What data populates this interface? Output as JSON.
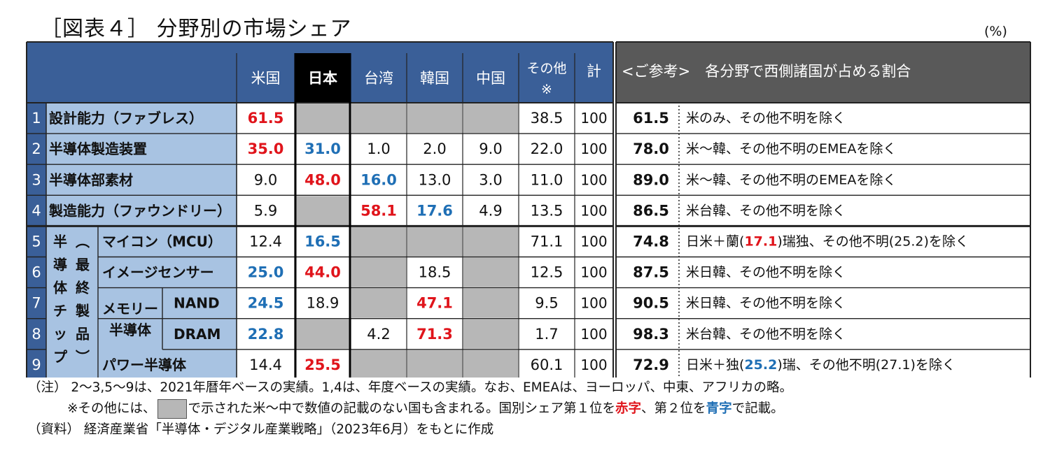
{
  "title": "［図表４］ 分野別の市場シェア",
  "unit": "(%)",
  "colors": {
    "red": "#e0141b",
    "blue": "#1f6fb5",
    "header_bg": "#3a5f98",
    "row_label_bg": "#a8c3e2",
    "na_gray": "#b7b7b7",
    "ref_header_bg": "#595959"
  },
  "chart_data": {
    "type": "table",
    "headers": {
      "countries": [
        "米国",
        "日本",
        "台湾",
        "韓国",
        "中国",
        "その他\n※"
      ],
      "total": "計",
      "reference": "<ご参考>　各分野で西側諸国が占める割合"
    },
    "group_label": "半導体（最終製品）",
    "memory_label": "メモリー半導体",
    "rows": [
      {
        "no": "1",
        "label": "設計能力（ファブレス）",
        "values": [
          "61.5",
          null,
          null,
          null,
          null,
          "38.5"
        ],
        "styles": [
          "red",
          "",
          "",
          "",
          "",
          ""
        ],
        "total": "100",
        "ref_value": "61.5",
        "ref_note": "米のみ、その他不明を除く"
      },
      {
        "no": "2",
        "label": "半導体製造装置",
        "values": [
          "35.0",
          "31.0",
          "1.0",
          "2.0",
          "9.0",
          "22.0"
        ],
        "styles": [
          "red",
          "blue",
          "",
          "",
          "",
          ""
        ],
        "total": "100",
        "ref_value": "78.0",
        "ref_note": "米～韓、その他不明のEMEAを除く"
      },
      {
        "no": "3",
        "label": "半導体部素材",
        "values": [
          "9.0",
          "48.0",
          "16.0",
          "13.0",
          "3.0",
          "11.0"
        ],
        "styles": [
          "",
          "red",
          "blue",
          "",
          "",
          ""
        ],
        "total": "100",
        "ref_value": "89.0",
        "ref_note": "米～韓、その他不明のEMEAを除く"
      },
      {
        "no": "4",
        "label": "製造能力（ファウンドリー）",
        "values": [
          "5.9",
          null,
          "58.1",
          "17.6",
          "4.9",
          "13.5"
        ],
        "styles": [
          "",
          "",
          "red",
          "blue",
          "",
          ""
        ],
        "total": "100",
        "ref_value": "86.5",
        "ref_note": "米台韓、その他不明を除く"
      },
      {
        "no": "5",
        "label": "マイコン（MCU）",
        "values": [
          "12.4",
          "16.5",
          null,
          null,
          null,
          "71.1"
        ],
        "styles": [
          "",
          "blue",
          "",
          "",
          "",
          ""
        ],
        "total": "100",
        "ref_value": "74.8",
        "ref_note": "日米＋蘭(17.1)瑞独、その他不明(25.2)を除く"
      },
      {
        "no": "6",
        "label": "イメージセンサー",
        "values": [
          "25.0",
          "44.0",
          null,
          "18.5",
          null,
          "12.5"
        ],
        "styles": [
          "blue",
          "red",
          "",
          "",
          "",
          ""
        ],
        "total": "100",
        "ref_value": "87.5",
        "ref_note": "米日韓、その他不明を除く"
      },
      {
        "no": "7",
        "label": "NAND",
        "values": [
          "24.5",
          "18.9",
          null,
          "47.1",
          null,
          "9.5"
        ],
        "styles": [
          "blue",
          "",
          "",
          "red",
          "",
          ""
        ],
        "total": "100",
        "ref_value": "90.5",
        "ref_note": "米日韓、その他不明を除く"
      },
      {
        "no": "8",
        "label": "DRAM",
        "values": [
          "22.8",
          null,
          "4.2",
          "71.3",
          null,
          "1.7"
        ],
        "styles": [
          "blue",
          "",
          "",
          "red",
          "",
          ""
        ],
        "total": "100",
        "ref_value": "98.3",
        "ref_note": "米台韓、その他不明を除く"
      },
      {
        "no": "9",
        "label": "パワー半導体",
        "values": [
          "14.4",
          "25.5",
          null,
          null,
          null,
          "60.1"
        ],
        "styles": [
          "",
          "red",
          "",
          "",
          "",
          ""
        ],
        "total": "100",
        "ref_value": "72.9",
        "ref_note": "日米＋独(25.2)瑞、その他不明(27.1)を除く"
      }
    ]
  },
  "notes": {
    "line1": "（注） 2～3,5～9は、2021年暦年ベースの実績。1,4は、年度ベースの実績。なお、EMEAは、ヨーロッパ、中東、アフリカの略。",
    "line2_a": "※その他には、",
    "line2_b": "で示された米～中で数値の記載のない国も含まれる。国別シェア第１位を",
    "line2_red": "赤字",
    "line2_c": "、第２位を",
    "line2_blue": "青字",
    "line2_d": "で記載。",
    "line3": "（資料） 経済産業省「半導体・デジタル産業戦略」（2023年6月）をもとに作成"
  }
}
